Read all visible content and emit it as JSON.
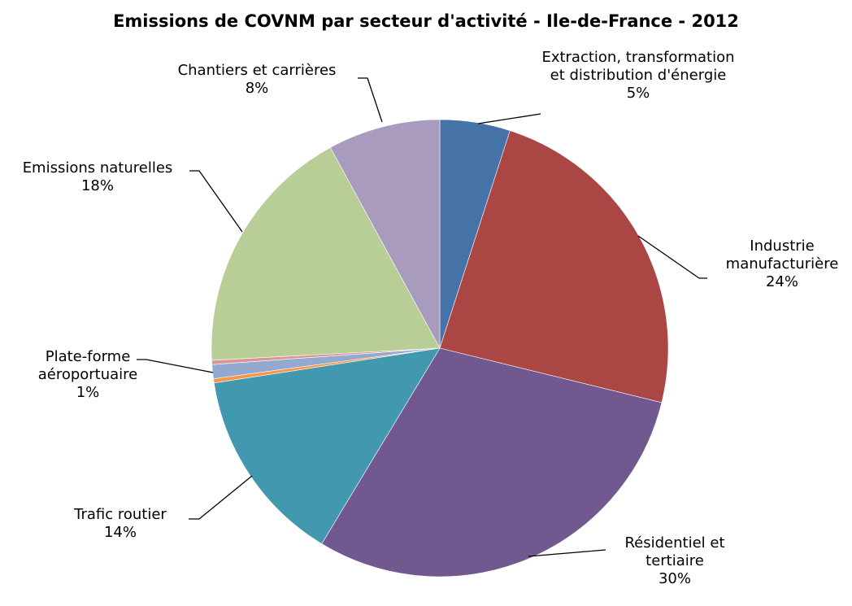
{
  "chart_data": {
    "type": "pie",
    "title": "Emissions de COVNM par secteur d'activité - Ile-de-France - 2012",
    "categories": [
      "Extraction, transformation et distribution d'énergie",
      "Industrie manufacturière",
      "Résidentiel et tertiaire",
      "Trafic routier",
      null,
      "Plate-forme aéroportuaire",
      null,
      "Emissions naturelles",
      "Chantiers et carrières"
    ],
    "values": [
      5,
      24,
      30,
      14,
      0.3,
      1,
      0.3,
      18,
      8
    ],
    "value_labels": [
      "5%",
      "24%",
      "30%",
      "14%",
      null,
      "1%",
      null,
      "18%",
      "8%"
    ],
    "colors": [
      "#4572a7",
      "#aa4643",
      "#71588f",
      "#4198af",
      "#f79646",
      "#93a9cf",
      "#d99694",
      "#b9cd96",
      "#a99bbd"
    ]
  }
}
